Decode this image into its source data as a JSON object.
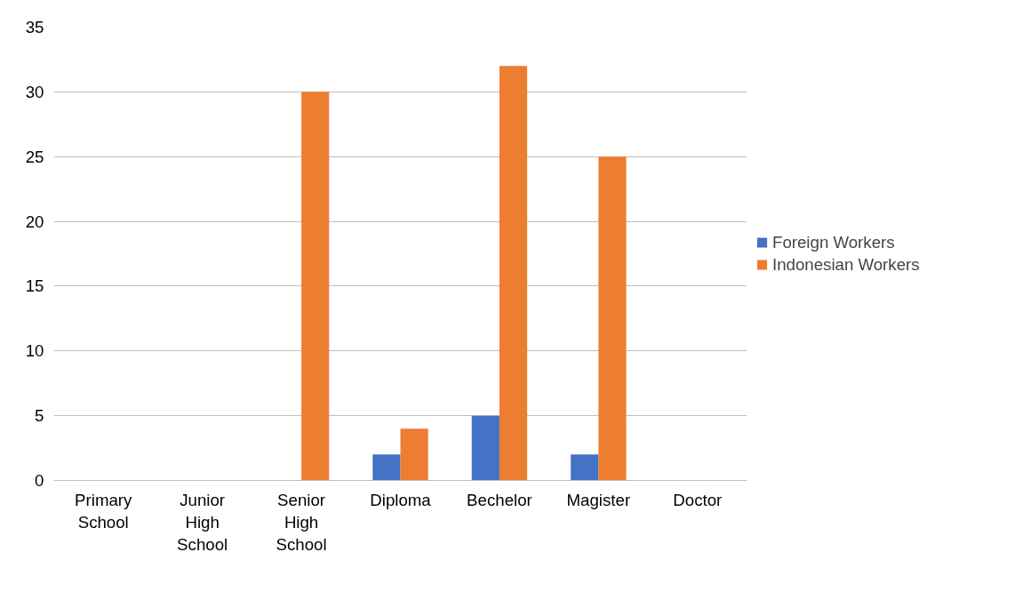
{
  "chart_data": {
    "type": "bar",
    "categories": [
      "Primary School",
      "Junior High School",
      "Senior High School",
      "Diploma",
      "Bechelor",
      "Magister",
      "Doctor"
    ],
    "series": [
      {
        "name": "Foreign Workers",
        "color": "#4472c4",
        "values": [
          0,
          0,
          0,
          2,
          5,
          2,
          0
        ]
      },
      {
        "name": "Indonesian Workers",
        "color": "#ed7d31",
        "values": [
          0,
          0,
          30,
          4,
          32,
          25,
          0
        ]
      }
    ],
    "ylim": [
      0,
      35
    ],
    "yticks": [
      0,
      5,
      10,
      15,
      20,
      25,
      30,
      35
    ],
    "grid": "y",
    "legend": "right"
  }
}
